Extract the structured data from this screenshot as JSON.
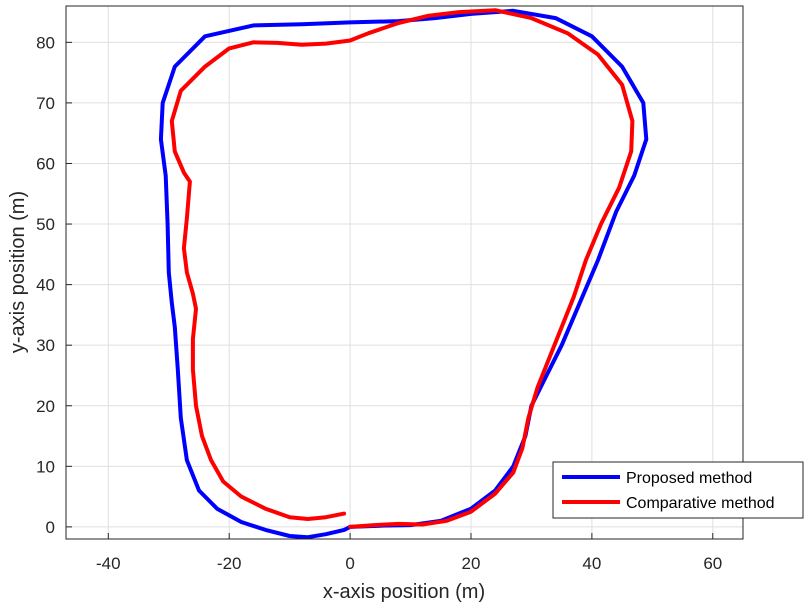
{
  "chart_data": {
    "type": "line",
    "xlabel": "x-axis position (m)",
    "ylabel": "y-axis position (m)",
    "xlim": [
      -47,
      65
    ],
    "ylim": [
      -2,
      86
    ],
    "xticks": [
      -40,
      -20,
      0,
      20,
      40,
      60
    ],
    "yticks": [
      0,
      10,
      20,
      30,
      40,
      50,
      60,
      70,
      80
    ],
    "grid": true,
    "legend_position": "bottom-right",
    "series": [
      {
        "name": "Proposed method",
        "color": "#0000ff",
        "points": [
          [
            0,
            0
          ],
          [
            5,
            0.2
          ],
          [
            10,
            0.3
          ],
          [
            15,
            1
          ],
          [
            20,
            3
          ],
          [
            24,
            6
          ],
          [
            27,
            10
          ],
          [
            29,
            15
          ],
          [
            30,
            20
          ],
          [
            32,
            24
          ],
          [
            35,
            30
          ],
          [
            38,
            37
          ],
          [
            41,
            44
          ],
          [
            44,
            52
          ],
          [
            47,
            58
          ],
          [
            49,
            64
          ],
          [
            48.5,
            70
          ],
          [
            45,
            76
          ],
          [
            40,
            81
          ],
          [
            34,
            84
          ],
          [
            27,
            85.2
          ],
          [
            20,
            84.7
          ],
          [
            14,
            84
          ],
          [
            8,
            83.5
          ],
          [
            0,
            83.3
          ],
          [
            -8,
            83
          ],
          [
            -16,
            82.8
          ],
          [
            -24,
            81
          ],
          [
            -29,
            76
          ],
          [
            -31,
            70
          ],
          [
            -31.3,
            64
          ],
          [
            -30.5,
            58
          ],
          [
            -30.2,
            50
          ],
          [
            -30,
            42
          ],
          [
            -29.5,
            37
          ],
          [
            -29,
            33
          ],
          [
            -28.5,
            26
          ],
          [
            -28,
            18
          ],
          [
            -27,
            11
          ],
          [
            -25,
            6
          ],
          [
            -22,
            3
          ],
          [
            -18,
            0.8
          ],
          [
            -14,
            -0.5
          ],
          [
            -10,
            -1.5
          ],
          [
            -7,
            -1.7
          ],
          [
            -4,
            -1.2
          ],
          [
            -1,
            -0.5
          ],
          [
            0,
            0
          ]
        ]
      },
      {
        "name": "Comparative method",
        "color": "#ff0000",
        "points": [
          [
            0,
            0
          ],
          [
            4,
            0.3
          ],
          [
            8,
            0.5
          ],
          [
            12,
            0.4
          ],
          [
            16,
            1
          ],
          [
            20,
            2.5
          ],
          [
            24,
            5.5
          ],
          [
            27,
            9
          ],
          [
            28.5,
            13
          ],
          [
            29.5,
            18
          ],
          [
            31,
            23
          ],
          [
            33,
            28
          ],
          [
            35,
            33
          ],
          [
            37,
            38
          ],
          [
            39,
            44
          ],
          [
            41.5,
            50
          ],
          [
            44.5,
            56
          ],
          [
            46.5,
            62
          ],
          [
            46.7,
            67
          ],
          [
            45,
            73
          ],
          [
            41,
            78
          ],
          [
            36,
            81.5
          ],
          [
            30,
            84
          ],
          [
            24,
            85.3
          ],
          [
            18,
            85
          ],
          [
            13,
            84.4
          ],
          [
            8,
            83.2
          ],
          [
            3,
            81.5
          ],
          [
            0,
            80.3
          ],
          [
            -4,
            79.8
          ],
          [
            -8,
            79.6
          ],
          [
            -12,
            79.9
          ],
          [
            -16,
            80
          ],
          [
            -20,
            79
          ],
          [
            -24,
            76
          ],
          [
            -28,
            72
          ],
          [
            -29.5,
            67
          ],
          [
            -29,
            62
          ],
          [
            -27.5,
            58.5
          ],
          [
            -26.5,
            57
          ],
          [
            -27,
            51
          ],
          [
            -27.5,
            46
          ],
          [
            -27,
            42
          ],
          [
            -26,
            38.5
          ],
          [
            -25.5,
            36
          ],
          [
            -26,
            31
          ],
          [
            -26,
            26
          ],
          [
            -25.5,
            20
          ],
          [
            -24.5,
            15
          ],
          [
            -23,
            11
          ],
          [
            -21,
            7.5
          ],
          [
            -18,
            5
          ],
          [
            -14,
            3
          ],
          [
            -10,
            1.6
          ],
          [
            -7,
            1.3
          ],
          [
            -4,
            1.6
          ],
          [
            -1,
            2.2
          ]
        ]
      }
    ]
  }
}
